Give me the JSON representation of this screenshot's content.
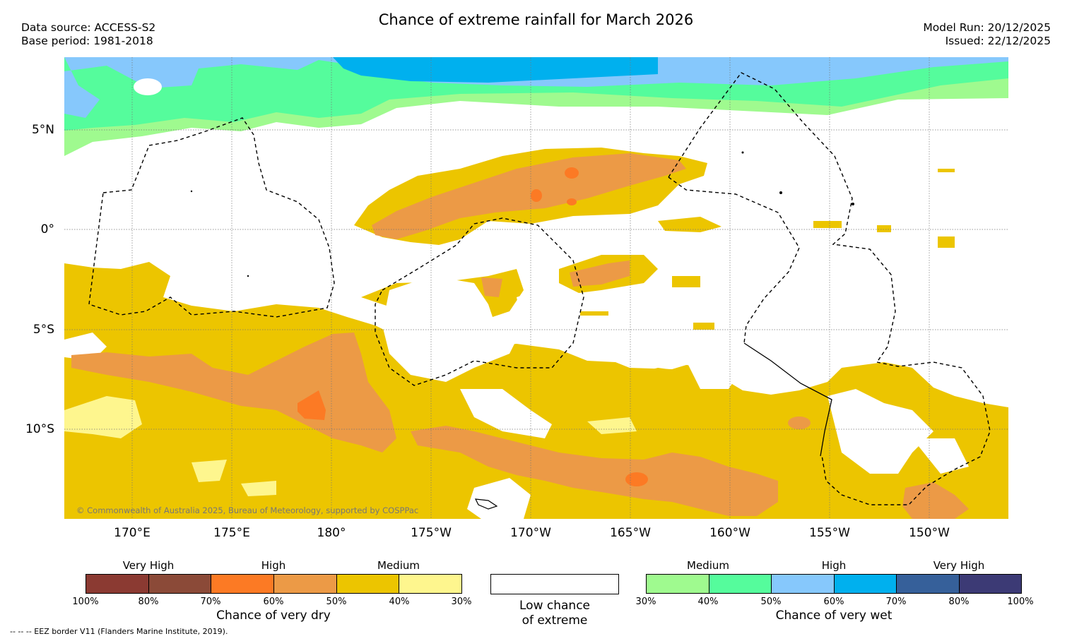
{
  "title": "Chance of extreme rainfall for March 2026",
  "meta": {
    "data_source": "Data source: ACCESS-S2",
    "base_period": "Base period: 1981-2018",
    "model_run": "Model Run: 20/12/2025",
    "issued": "Issued: 22/12/2025"
  },
  "map": {
    "latitude_labels": [
      "5°N",
      "0°",
      "5°S",
      "10°S"
    ],
    "longitude_labels": [
      "170°E",
      "175°E",
      "180°",
      "175°W",
      "170°W",
      "165°W",
      "160°W",
      "155°W",
      "150°W"
    ],
    "copyright": "© Commonwealth of Australia 2025, Bureau of Meteorology, supported by COSPPac",
    "colors": {
      "dry_medium_light": "#fef68e",
      "dry_medium": "#ecc500",
      "dry_high": "#ec9a46",
      "dry_high_strong": "#fc7a24",
      "wet_medium_light": "#9ffa8f",
      "wet_medium": "#55fc9c",
      "wet_high": "#86c8fc",
      "wet_high_strong": "#00b0ee"
    }
  },
  "legend": {
    "dry": {
      "categories": [
        "Very High",
        "High",
        "Medium"
      ],
      "colors": [
        "#8b3a32",
        "#8b4a38",
        "#fc7a24",
        "#ec9a46",
        "#ecc500",
        "#fef68e"
      ],
      "ticks": [
        "100%",
        "80%",
        "70%",
        "60%",
        "50%",
        "40%",
        "30%"
      ],
      "label": "Chance of very dry"
    },
    "neutral": {
      "label_line1": "Low chance",
      "label_line2": "of extreme"
    },
    "wet": {
      "categories": [
        "Medium",
        "High",
        "Very High"
      ],
      "colors": [
        "#9ffa8f",
        "#55fc9c",
        "#86c8fc",
        "#00b0ee",
        "#36609a",
        "#3c3a75"
      ],
      "ticks": [
        "30%",
        "40%",
        "50%",
        "60%",
        "70%",
        "80%",
        "100%"
      ],
      "label": "Chance of very wet"
    }
  },
  "footnote": "--  --  -- EEZ border V11 (Flanders Marine Institute, 2019)."
}
